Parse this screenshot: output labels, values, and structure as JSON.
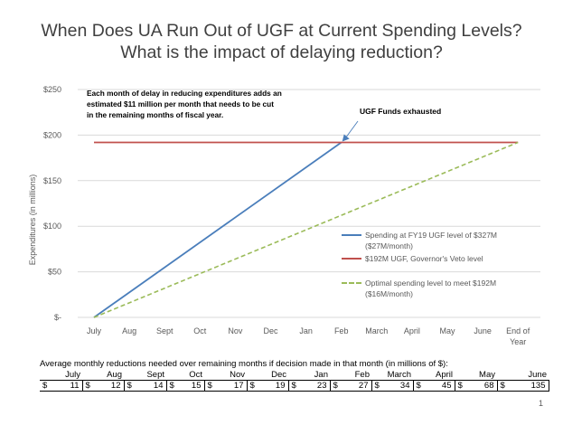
{
  "slide": {
    "title_line1": "When Does UA Run Out of UGF at Current Spending Levels?",
    "title_line2": "What is the impact of delaying reduction?",
    "page_number": "1"
  },
  "chart_data": {
    "type": "line",
    "categories": [
      "July",
      "Aug",
      "Sept",
      "Oct",
      "Nov",
      "Dec",
      "Jan",
      "Feb",
      "March",
      "April",
      "May",
      "June",
      "End of Year"
    ],
    "ylabel": "Expenditures (in millions)",
    "xlabel": "",
    "ylim": [
      0,
      250
    ],
    "yticks": [
      0,
      50,
      100,
      150,
      200,
      250
    ],
    "ytick_labels": [
      "$-",
      "$50",
      "$100",
      "$150",
      "$200",
      "$250"
    ],
    "grid": true,
    "legend_position": "right",
    "series": [
      {
        "name": "Spending at FY19 UGF level of $327M ($27M/month)",
        "legend_lines": [
          "Spending at FY19 UGF level of $327M",
          "($27M/month)"
        ],
        "color": "#4a7ebb",
        "style": "solid",
        "points": [
          [
            0,
            0
          ],
          [
            7,
            192
          ]
        ]
      },
      {
        "name": "$192M UGF, Governor's Veto level",
        "legend_lines": [
          "$192M UGF, Governor's Veto level"
        ],
        "color": "#c0504d",
        "style": "solid",
        "points": [
          [
            0,
            192
          ],
          [
            12,
            192
          ]
        ]
      },
      {
        "name": "Optimal spending level to meet $192M ($16M/month)",
        "legend_lines": [
          "Optimal spending level to meet $192M",
          "($16M/month)"
        ],
        "color": "#9bbb59",
        "style": "dashed",
        "points": [
          [
            0,
            0
          ],
          [
            12,
            192
          ]
        ]
      }
    ],
    "annotations": {
      "callout_lines": [
        "Each month of delay in reducing expenditures adds an",
        "estimated $11 million per month that needs to be cut",
        "in the remaining months of fiscal year."
      ],
      "exhausted_label": "UGF Funds exhausted"
    }
  },
  "reduction_table": {
    "caption": "Average monthly reductions needed over remaining months if decision made in that month (in millions of $):",
    "currency": "$",
    "months": [
      "July",
      "Aug",
      "Sept",
      "Oct",
      "Nov",
      "Dec",
      "Jan",
      "Feb",
      "March",
      "April",
      "May",
      "June"
    ],
    "values": [
      "11",
      "12",
      "14",
      "15",
      "17",
      "19",
      "23",
      "27",
      "34",
      "45",
      "68",
      "135"
    ]
  }
}
